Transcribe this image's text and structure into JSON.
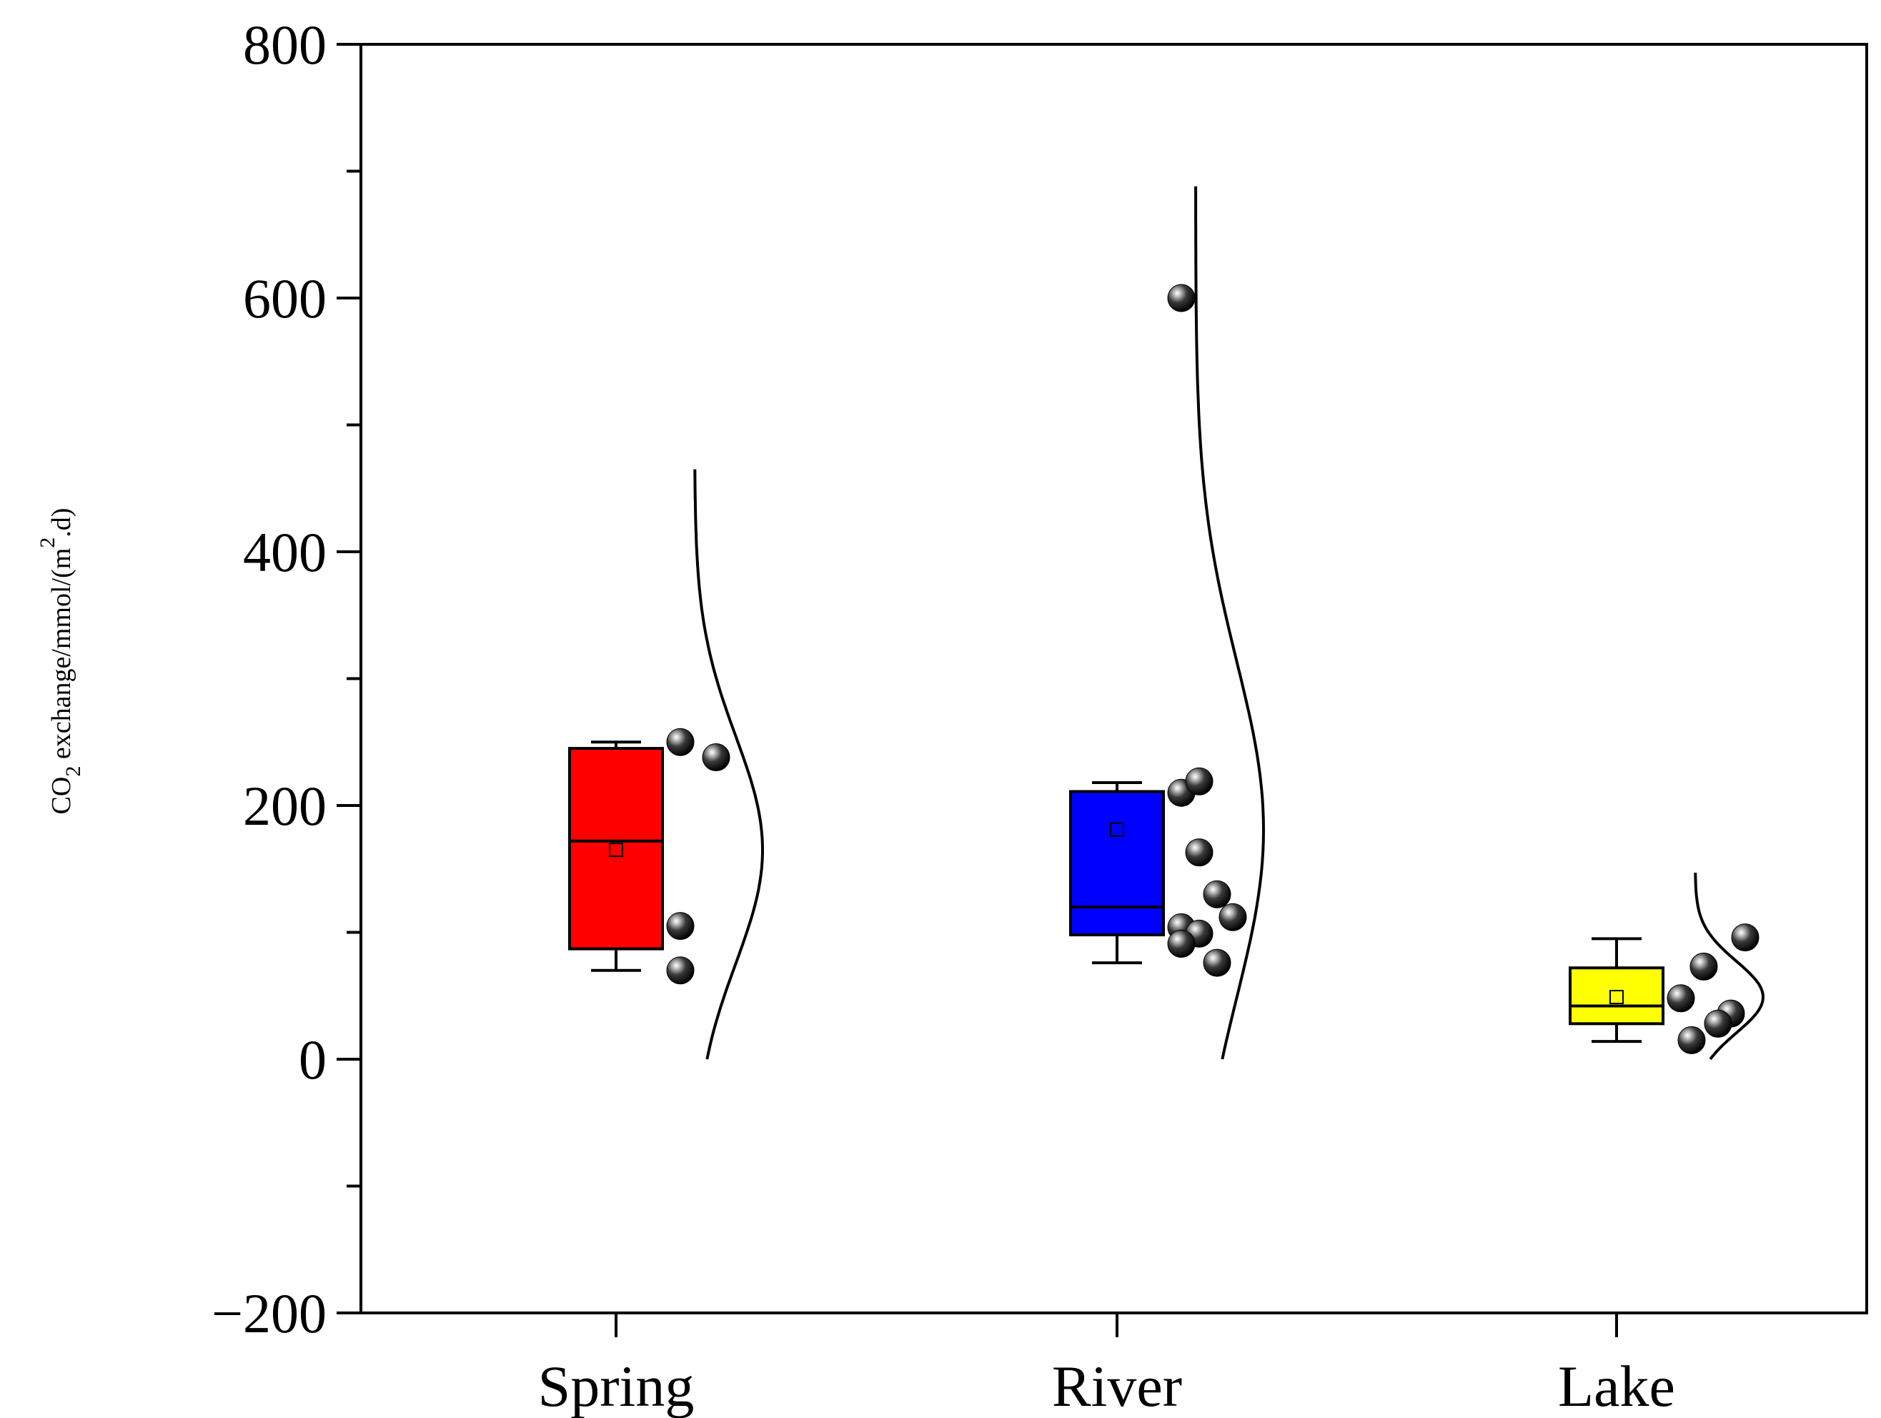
{
  "chart_data": {
    "type": "box",
    "title": "",
    "xlabel": "",
    "ylabel": {
      "text_parts": [
        "CO",
        "2",
        " exchange/mmol/(m",
        "2",
        ".d)"
      ]
    },
    "ylim": [
      -200,
      800
    ],
    "yticks": [
      {
        "value": -200,
        "label": "−200"
      },
      {
        "value": 0,
        "label": "0"
      },
      {
        "value": 200,
        "label": "200"
      },
      {
        "value": 400,
        "label": "400"
      },
      {
        "value": 600,
        "label": "600"
      },
      {
        "value": 800,
        "label": "800"
      }
    ],
    "minor_ytick_step": 100,
    "grid": false,
    "legend": "none",
    "categories": [
      "Spring",
      "River",
      "Lake"
    ],
    "boxes": [
      {
        "name": "Spring",
        "color": "#ff0000",
        "whisker_low": 70,
        "q1": 87,
        "median": 172,
        "q3": 245,
        "whisker_high": 250,
        "mean": 165,
        "points": [
          250,
          238,
          105,
          70
        ],
        "density_range": [
          0,
          465
        ],
        "density_peak": 165
      },
      {
        "name": "River",
        "color": "#0000ff",
        "whisker_low": 76,
        "q1": 98,
        "median": 120,
        "q3": 211,
        "whisker_high": 218,
        "mean": 181,
        "points": [
          600,
          210,
          219,
          163,
          130,
          112,
          104,
          99,
          91,
          76
        ],
        "density_range": [
          0,
          688
        ],
        "density_peak": 181
      },
      {
        "name": "Lake",
        "color": "#ffff00",
        "whisker_low": 14,
        "q1": 28,
        "median": 42,
        "q3": 72,
        "whisker_high": 95,
        "mean": 49,
        "points": [
          96,
          73,
          48,
          36,
          28,
          15
        ],
        "density_range": [
          0,
          147
        ],
        "density_peak": 49
      }
    ]
  }
}
